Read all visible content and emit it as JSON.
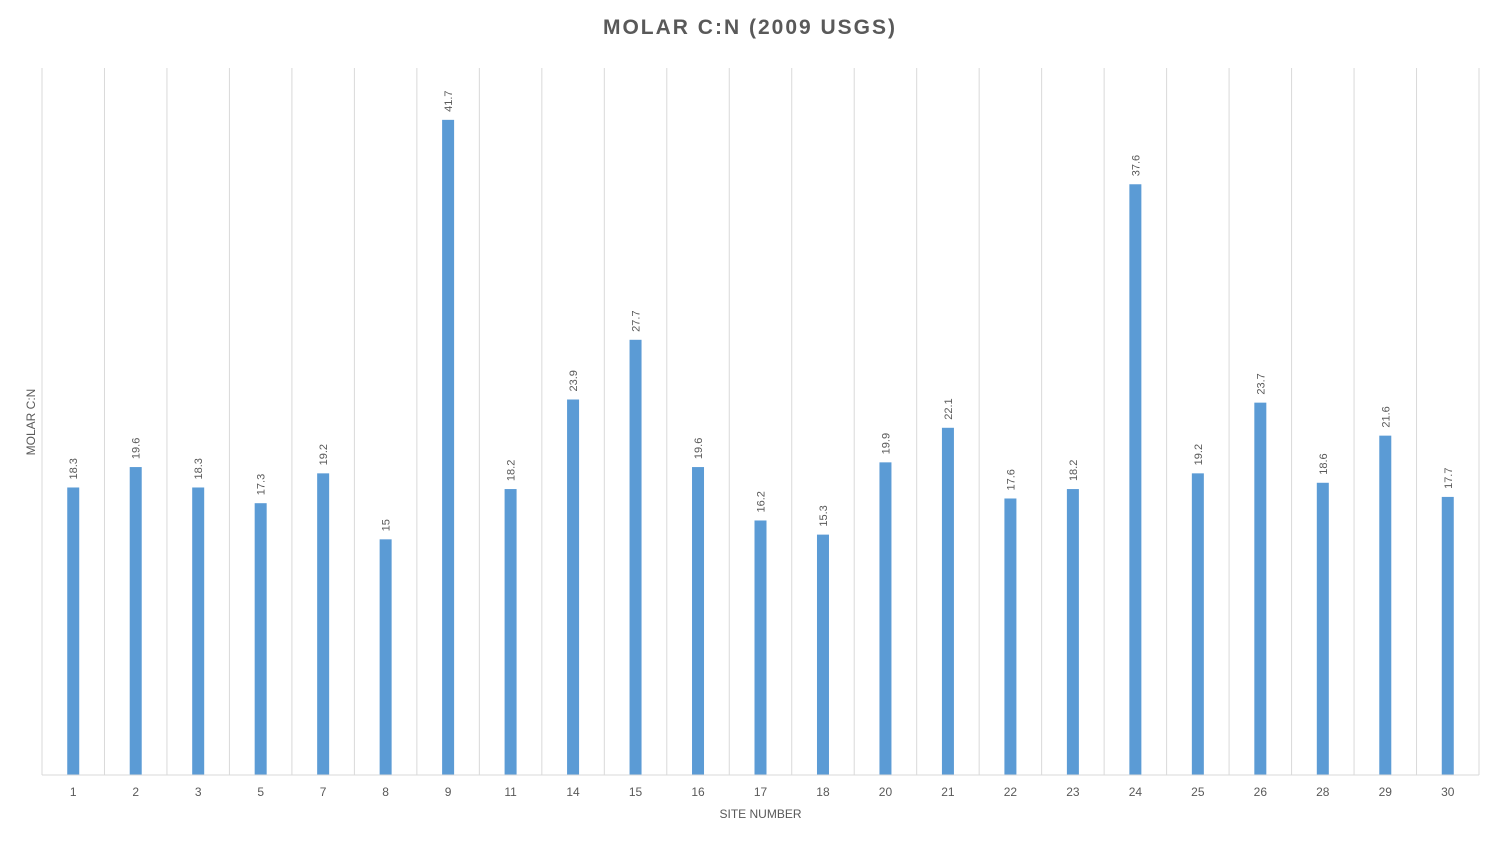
{
  "chart_data": {
    "type": "bar",
    "title": "MOLAR C:N (2009 USGS)",
    "xlabel": "SITE NUMBER",
    "ylabel": "MOLAR C:N",
    "categories": [
      "1",
      "2",
      "3",
      "5",
      "7",
      "8",
      "9",
      "11",
      "14",
      "15",
      "16",
      "17",
      "18",
      "20",
      "21",
      "22",
      "23",
      "24",
      "25",
      "26",
      "28",
      "29",
      "30"
    ],
    "values": [
      18.3,
      19.6,
      18.3,
      17.3,
      19.2,
      15,
      41.7,
      18.2,
      23.9,
      27.7,
      19.6,
      16.2,
      15.3,
      19.9,
      22.1,
      17.6,
      18.2,
      37.6,
      19.2,
      23.7,
      18.6,
      21.6,
      17.7
    ],
    "data_labels": [
      "18.3",
      "19.6",
      "18.3",
      "17.3",
      "19.2",
      "15",
      "41.7",
      "18.2",
      "23.9",
      "27.7",
      "19.6",
      "16.2",
      "15.3",
      "19.9",
      "22.1",
      "17.6",
      "18.2",
      "37.6",
      "19.2",
      "23.7",
      "18.6",
      "21.6",
      "17.7"
    ],
    "ylim": [
      0,
      45
    ],
    "grid": "vertical",
    "legend": "none",
    "bar_color": "#5b9bd5",
    "grid_color": "#d9d9d9",
    "text_color": "#595959"
  }
}
